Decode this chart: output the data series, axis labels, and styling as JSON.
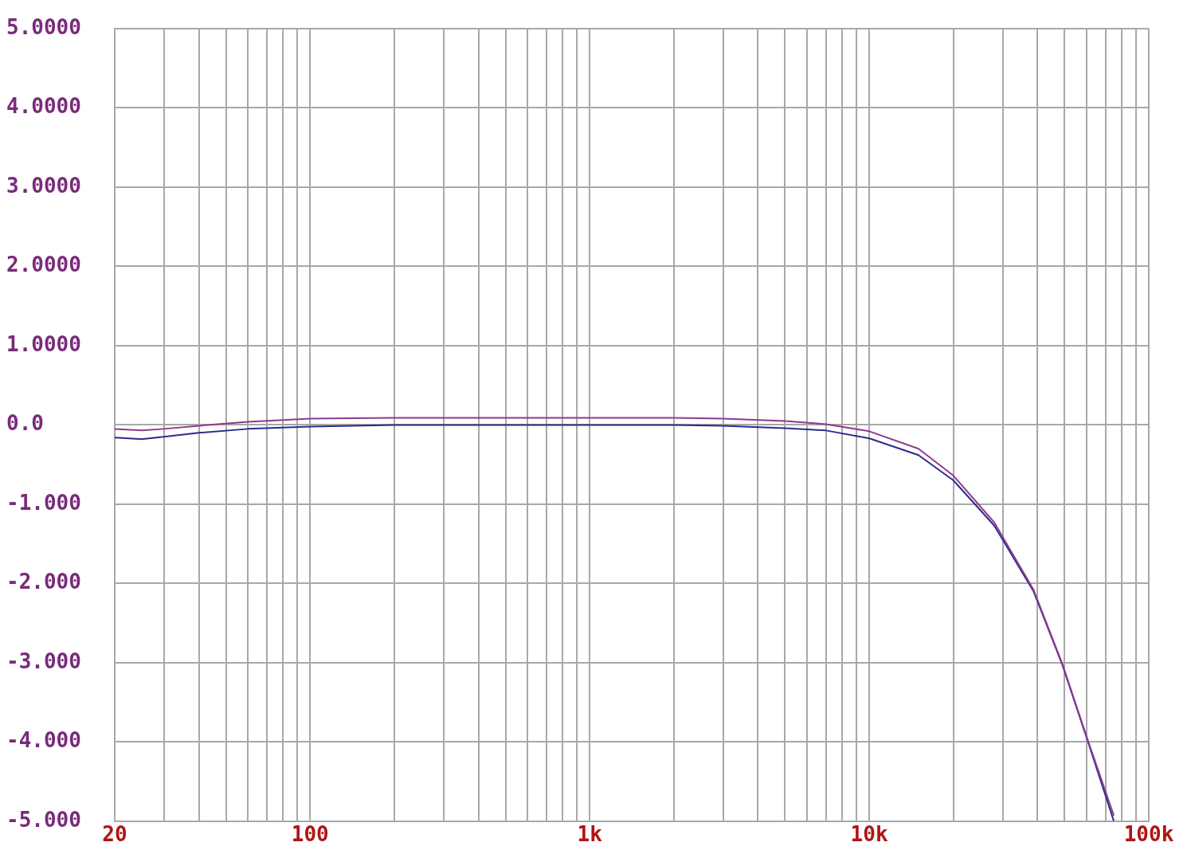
{
  "chart_data": {
    "type": "line",
    "x": [
      20,
      25,
      30,
      40,
      60,
      100,
      200,
      500,
      1000,
      2000,
      3000,
      5000,
      7000,
      10000,
      15000,
      20000,
      28000,
      38700,
      49000,
      60000,
      75000
    ],
    "series": [
      {
        "color": "#8e3a8e",
        "values": [
          -0.05,
          -0.07,
          -0.05,
          -0.01,
          0.04,
          0.08,
          0.09,
          0.09,
          0.09,
          0.09,
          0.08,
          0.05,
          0.01,
          -0.08,
          -0.3,
          -0.64,
          -1.23,
          -2.08,
          -3.01,
          -3.94,
          -4.93
        ]
      },
      {
        "color": "#2b2b8c",
        "values": [
          -0.16,
          -0.18,
          -0.15,
          -0.1,
          -0.05,
          -0.02,
          0.0,
          0.0,
          0.0,
          0.0,
          -0.01,
          -0.04,
          -0.07,
          -0.17,
          -0.38,
          -0.7,
          -1.27,
          -2.1,
          -3.02,
          -3.95,
          -5.0
        ]
      }
    ],
    "log": "x",
    "xlim": [
      20,
      100000
    ],
    "xticks": [
      20,
      {
        "value": 30,
        "label": null
      },
      {
        "value": 40,
        "label": null
      },
      {
        "value": 50,
        "label": null
      },
      {
        "value": 60,
        "label": null
      },
      {
        "value": 70,
        "label": null
      },
      {
        "value": 80,
        "label": null
      },
      {
        "value": 90,
        "label": null
      },
      100,
      {
        "value": 200,
        "label": null
      },
      {
        "value": 300,
        "label": null
      },
      {
        "value": 400,
        "label": null
      },
      {
        "value": 500,
        "label": null
      },
      {
        "value": 600,
        "label": null
      },
      {
        "value": 700,
        "label": null
      },
      {
        "value": 800,
        "label": null
      },
      {
        "value": 900,
        "label": null
      },
      {
        "value": 1000,
        "label": "1k"
      },
      {
        "value": 2000,
        "label": null
      },
      {
        "value": 3000,
        "label": null
      },
      {
        "value": 4000,
        "label": null
      },
      {
        "value": 5000,
        "label": null
      },
      {
        "value": 6000,
        "label": null
      },
      {
        "value": 7000,
        "label": null
      },
      {
        "value": 8000,
        "label": null
      },
      {
        "value": 9000,
        "label": null
      },
      {
        "value": 10000,
        "label": "10k"
      },
      {
        "value": 20000,
        "label": null
      },
      {
        "value": 30000,
        "label": null
      },
      {
        "value": 40000,
        "label": null
      },
      {
        "value": 50000,
        "label": null
      },
      {
        "value": 60000,
        "label": null
      },
      {
        "value": 70000,
        "label": null
      },
      {
        "value": 80000,
        "label": null
      },
      {
        "value": 90000,
        "label": null
      },
      {
        "value": 100000,
        "label": "100k"
      }
    ],
    "ylim": [
      -5,
      5
    ],
    "yticks": [
      {
        "value": 5,
        "label": "5.0000"
      },
      {
        "value": 4,
        "label": "4.0000"
      },
      {
        "value": 3,
        "label": "3.0000"
      },
      {
        "value": 2,
        "label": "2.0000"
      },
      {
        "value": 1,
        "label": "1.0000"
      },
      {
        "value": 0,
        "label": "0.0"
      },
      {
        "value": -1,
        "label": "-1.000"
      },
      {
        "value": -2,
        "label": "-2.000"
      },
      {
        "value": -3,
        "label": "-3.000"
      },
      {
        "value": -4,
        "label": "-4.000"
      },
      {
        "value": -5,
        "label": "-5.000"
      }
    ],
    "grid": true,
    "legend": false,
    "marker": "none",
    "line_style": "solid"
  }
}
